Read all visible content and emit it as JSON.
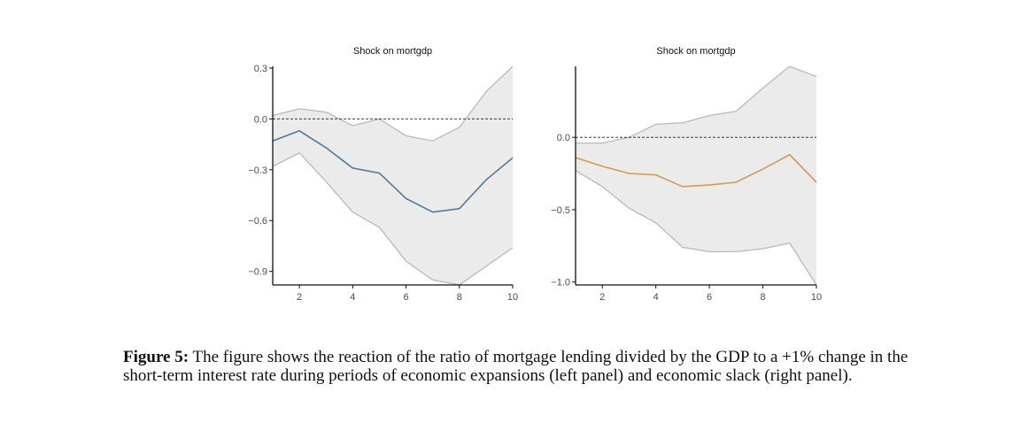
{
  "colors": {
    "band_fill": "#ebebeb",
    "band_edge": "#bdbdbd",
    "left_line": "#4e7a9c",
    "right_line": "#d39b4a",
    "axis": "#111111",
    "tick_text": "#4d4d4d"
  },
  "chart_data": [
    {
      "type": "line",
      "title": "Shock on mortgdp",
      "x": [
        1,
        2,
        3,
        4,
        5,
        6,
        7,
        8,
        9,
        10
      ],
      "xticks": [
        2,
        4,
        6,
        8,
        10
      ],
      "xlim": [
        1,
        10
      ],
      "yticks": [
        {
          "v": 0.3,
          "label": "0.3"
        },
        {
          "v": 0.0,
          "label": "0.0"
        },
        {
          "v": -0.3,
          "label": "−0.3"
        },
        {
          "v": -0.6,
          "label": "−0.6"
        },
        {
          "v": -0.9,
          "label": "−0.9"
        }
      ],
      "ylim": [
        -0.98,
        0.31
      ],
      "zero_line": 0.0,
      "series": [
        {
          "values": [
            -0.13,
            -0.07,
            -0.17,
            -0.29,
            -0.32,
            -0.47,
            -0.55,
            -0.53,
            -0.36,
            -0.23
          ]
        }
      ],
      "band_upper": [
        0.02,
        0.06,
        0.04,
        -0.04,
        0.0,
        -0.1,
        -0.13,
        -0.05,
        0.16,
        0.31
      ],
      "band_lower": [
        -0.28,
        -0.2,
        -0.37,
        -0.55,
        -0.64,
        -0.84,
        -0.95,
        -0.98,
        -0.87,
        -0.76
      ]
    },
    {
      "type": "line",
      "title": "Shock on mortgdp",
      "x": [
        1,
        2,
        3,
        4,
        5,
        6,
        7,
        8,
        9,
        10
      ],
      "xticks": [
        2,
        4,
        6,
        8,
        10
      ],
      "xlim": [
        1,
        10
      ],
      "yticks": [
        {
          "v": 0.0,
          "label": "0.0"
        },
        {
          "v": -0.5,
          "label": "−0.5"
        },
        {
          "v": -1.0,
          "label": "−1.0"
        }
      ],
      "ylim": [
        -1.02,
        0.49
      ],
      "zero_line": 0.0,
      "series": [
        {
          "values": [
            -0.14,
            -0.2,
            -0.25,
            -0.26,
            -0.34,
            -0.33,
            -0.31,
            -0.22,
            -0.12,
            -0.31
          ]
        }
      ],
      "band_upper": [
        -0.04,
        -0.04,
        0.0,
        0.09,
        0.1,
        0.15,
        0.18,
        0.34,
        0.49,
        0.42
      ],
      "band_lower": [
        -0.23,
        -0.34,
        -0.49,
        -0.59,
        -0.76,
        -0.79,
        -0.79,
        -0.77,
        -0.73,
        -1.02
      ]
    }
  ],
  "caption": {
    "label": "Figure 5:",
    "text": " The figure shows the reaction of the ratio of mortgage lending divided by the GDP to a +1% change in the short-term interest rate during periods of economic expansions (left panel) and economic slack (right panel)."
  }
}
